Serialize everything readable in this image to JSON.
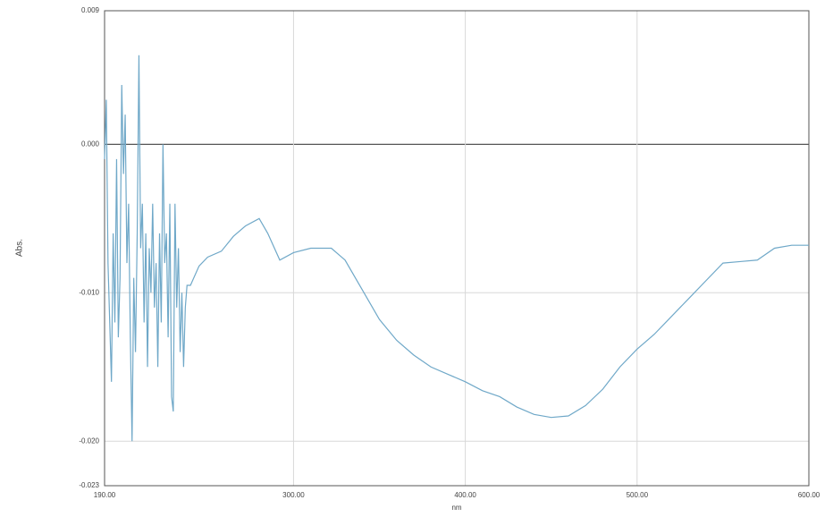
{
  "chart_data": {
    "type": "line",
    "xlabel": "nm",
    "ylabel": "Abs.",
    "xlim": [
      190,
      600
    ],
    "ylim": [
      -0.023,
      0.009
    ],
    "xticks": [
      {
        "value": 190,
        "label": "190.00"
      },
      {
        "value": 300,
        "label": "300.00"
      },
      {
        "value": 400,
        "label": "400.00"
      },
      {
        "value": 500,
        "label": "500.00"
      },
      {
        "value": 600,
        "label": "600.00"
      }
    ],
    "yticks": [
      0.009,
      {
        "value": 0,
        "label": "0.000"
      },
      {
        "value": -0.01,
        "label": "-0.010"
      },
      {
        "value": -0.02,
        "label": "-0.020"
      },
      -0.023
    ],
    "grid": true,
    "zero_line": true,
    "x": [
      190,
      191,
      192,
      193,
      194,
      195,
      196,
      197,
      198,
      199,
      200,
      201,
      202,
      203,
      204,
      205,
      206,
      207,
      208,
      209,
      210,
      211,
      212,
      213,
      214,
      215,
      216,
      217,
      218,
      219,
      220,
      221,
      222,
      223,
      224,
      225,
      226,
      227,
      228,
      229,
      230,
      231,
      232,
      233,
      234,
      235,
      236,
      237,
      238,
      240,
      245,
      250,
      258,
      265,
      272,
      280,
      285,
      292,
      300,
      310,
      322,
      330,
      340,
      350,
      360,
      370,
      380,
      390,
      400,
      410,
      420,
      430,
      440,
      450,
      460,
      470,
      480,
      490,
      500,
      510,
      520,
      530,
      540,
      550,
      560,
      570,
      580,
      590,
      600
    ],
    "series": [
      {
        "name": "Abs.",
        "color": "#6fa8c8",
        "values": [
          -0.001,
          0.003,
          -0.008,
          -0.012,
          -0.016,
          -0.006,
          -0.012,
          -0.001,
          -0.013,
          -0.009,
          0.004,
          -0.002,
          0.002,
          -0.008,
          -0.004,
          -0.013,
          -0.02,
          -0.009,
          -0.014,
          -0.006,
          0.006,
          -0.007,
          -0.004,
          -0.012,
          -0.006,
          -0.015,
          -0.007,
          -0.01,
          -0.004,
          -0.011,
          -0.008,
          -0.015,
          -0.006,
          -0.012,
          0.0,
          -0.008,
          -0.006,
          -0.013,
          -0.004,
          -0.017,
          -0.018,
          -0.004,
          -0.011,
          -0.007,
          -0.014,
          -0.01,
          -0.015,
          -0.011,
          -0.0095,
          -0.0095,
          -0.0082,
          -0.0076,
          -0.0072,
          -0.0062,
          -0.0055,
          -0.005,
          -0.006,
          -0.0078,
          -0.0073,
          -0.007,
          -0.007,
          -0.0078,
          -0.0098,
          -0.0118,
          -0.0132,
          -0.0142,
          -0.015,
          -0.0155,
          -0.016,
          -0.0166,
          -0.017,
          -0.0177,
          -0.0182,
          -0.0184,
          -0.0183,
          -0.0176,
          -0.0165,
          -0.015,
          -0.0138,
          -0.0128,
          -0.0116,
          -0.0104,
          -0.0092,
          -0.008,
          -0.0079,
          -0.0078,
          -0.007,
          -0.0068,
          -0.0068
        ]
      }
    ]
  }
}
